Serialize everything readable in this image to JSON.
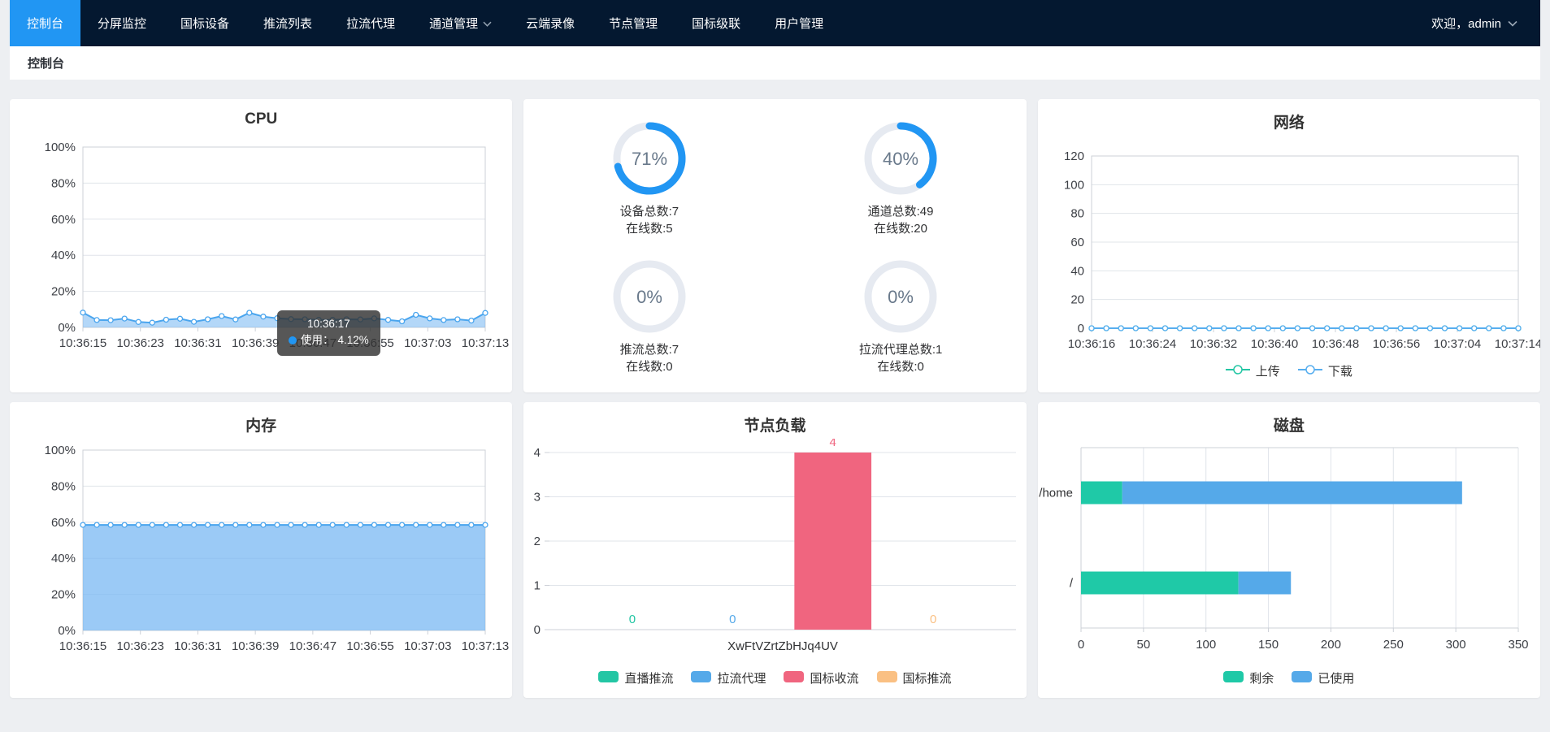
{
  "nav": {
    "items": [
      {
        "label": "控制台",
        "active": true,
        "dropdown": false
      },
      {
        "label": "分屏监控",
        "active": false,
        "dropdown": false
      },
      {
        "label": "国标设备",
        "active": false,
        "dropdown": false
      },
      {
        "label": "推流列表",
        "active": false,
        "dropdown": false
      },
      {
        "label": "拉流代理",
        "active": false,
        "dropdown": false
      },
      {
        "label": "通道管理",
        "active": false,
        "dropdown": true
      },
      {
        "label": "云端录像",
        "active": false,
        "dropdown": false
      },
      {
        "label": "节点管理",
        "active": false,
        "dropdown": false
      },
      {
        "label": "国标级联",
        "active": false,
        "dropdown": false
      },
      {
        "label": "用户管理",
        "active": false,
        "dropdown": false
      }
    ],
    "welcome": "欢迎，admin"
  },
  "breadcrumb": "控制台",
  "colors": {
    "navbar_bg": "#041830",
    "active_tab": "#2196f3",
    "accent_blue": "#2196f3",
    "line_blue": "#4aa5ee",
    "teal": "#23c6a4",
    "bar_blue": "#55a9e9",
    "pink": "#f0657f",
    "orange": "#fac083",
    "gauge_track": "#e6eaf1"
  },
  "chart_data": [
    {
      "id": "cpu",
      "type": "area",
      "title": "CPU",
      "ylim": [
        0,
        100
      ],
      "yticks": [
        0,
        20,
        40,
        60,
        80,
        100
      ],
      "y_suffix": "%",
      "x": [
        "10:36:15",
        "10:36:17",
        "10:36:19",
        "10:36:21",
        "10:36:23",
        "10:36:25",
        "10:36:27",
        "10:36:29",
        "10:36:31",
        "10:36:33",
        "10:36:35",
        "10:36:37",
        "10:36:39",
        "10:36:41",
        "10:36:43",
        "10:36:45",
        "10:36:47",
        "10:36:49",
        "10:36:51",
        "10:36:53",
        "10:36:55",
        "10:36:57",
        "10:36:59",
        "10:37:01",
        "10:37:03",
        "10:37:05",
        "10:37:07",
        "10:37:09",
        "10:37:11",
        "10:37:13"
      ],
      "x_tick_labels": [
        "10:36:15",
        "10:36:23",
        "10:36:31",
        "10:36:39",
        "10:36:47",
        "10:36:55",
        "10:37:03",
        "10:37:13"
      ],
      "series": [
        {
          "name": "使用",
          "color": "#4aa5ee",
          "fill": "rgba(116,182,242,0.55)",
          "values": [
            8.2,
            4.12,
            4.0,
            4.9,
            3.0,
            2.6,
            4.3,
            4.8,
            3.1,
            4.5,
            6.3,
            4.4,
            8.1,
            6.0,
            5.1,
            4.6,
            4.5,
            4.2,
            4.2,
            4.5,
            4.4,
            5.0,
            4.2,
            3.4,
            7.0,
            5.0,
            4.1,
            4.5,
            3.8,
            8.0
          ]
        }
      ],
      "tooltip": {
        "time": "10:36:17",
        "label": "使用：",
        "value": "4.12%"
      }
    },
    {
      "id": "overview-gauges",
      "type": "gauge",
      "color": "#2196f3",
      "track": "#e6eaf1",
      "items": [
        {
          "percent": 71,
          "text": "71%",
          "label_lines": [
            "设备总数:7",
            "在线数:5"
          ]
        },
        {
          "percent": 40,
          "text": "40%",
          "label_lines": [
            "通道总数:49",
            "在线数:20"
          ]
        },
        {
          "percent": 0,
          "text": "0%",
          "label_lines": [
            "推流总数:7",
            "在线数:0"
          ]
        },
        {
          "percent": 0,
          "text": "0%",
          "label_lines": [
            "拉流代理总数:1",
            "在线数:0"
          ]
        }
      ]
    },
    {
      "id": "network",
      "type": "line",
      "title": "网络",
      "ylim": [
        0,
        120
      ],
      "yticks": [
        0,
        20,
        40,
        60,
        80,
        100,
        120
      ],
      "y_suffix": "",
      "x": [
        "10:36:16",
        "10:36:18",
        "10:36:20",
        "10:36:22",
        "10:36:24",
        "10:36:26",
        "10:36:28",
        "10:36:30",
        "10:36:32",
        "10:36:34",
        "10:36:36",
        "10:36:38",
        "10:36:40",
        "10:36:42",
        "10:36:44",
        "10:36:46",
        "10:36:48",
        "10:36:50",
        "10:36:52",
        "10:36:54",
        "10:36:56",
        "10:36:58",
        "10:37:00",
        "10:37:02",
        "10:37:04",
        "10:37:06",
        "10:37:08",
        "10:37:10",
        "10:37:12",
        "10:37:14"
      ],
      "x_tick_labels": [
        "10:36:16",
        "10:36:24",
        "10:36:32",
        "10:36:40",
        "10:36:48",
        "10:36:56",
        "10:37:04",
        "10:37:14"
      ],
      "series": [
        {
          "name": "上传",
          "color": "#23c6a4",
          "values": [
            0,
            0,
            0,
            0,
            0,
            0,
            0,
            0,
            0,
            0,
            0,
            0,
            0,
            0,
            0,
            0,
            0,
            0,
            0,
            0,
            0,
            0,
            0,
            0,
            0,
            0,
            0,
            0,
            0,
            0
          ]
        },
        {
          "name": "下载",
          "color": "#57aeef",
          "values": [
            0,
            0,
            0,
            0,
            0,
            0,
            0,
            0,
            0,
            0,
            0,
            0,
            0,
            0,
            0,
            0,
            0,
            0,
            0,
            0,
            0,
            0,
            0,
            0,
            0,
            0,
            0,
            0,
            0,
            0
          ]
        }
      ],
      "legend": {
        "style": "line-marker",
        "position": "bottom"
      }
    },
    {
      "id": "memory",
      "type": "area",
      "title": "内存",
      "ylim": [
        0,
        100
      ],
      "yticks": [
        0,
        20,
        40,
        60,
        80,
        100
      ],
      "y_suffix": "%",
      "x": [
        "10:36:15",
        "10:36:17",
        "10:36:19",
        "10:36:21",
        "10:36:23",
        "10:36:25",
        "10:36:27",
        "10:36:29",
        "10:36:31",
        "10:36:33",
        "10:36:35",
        "10:36:37",
        "10:36:39",
        "10:36:41",
        "10:36:43",
        "10:36:45",
        "10:36:47",
        "10:36:49",
        "10:36:51",
        "10:36:53",
        "10:36:55",
        "10:36:57",
        "10:36:59",
        "10:37:01",
        "10:37:03",
        "10:37:05",
        "10:37:07",
        "10:37:09",
        "10:37:11",
        "10:37:13"
      ],
      "x_tick_labels": [
        "10:36:15",
        "10:36:23",
        "10:36:31",
        "10:36:39",
        "10:36:47",
        "10:36:55",
        "10:37:03",
        "10:37:13"
      ],
      "series": [
        {
          "name": "使用",
          "color": "#4aa5ee",
          "fill": "rgba(116,182,242,0.72)",
          "values": [
            58.5,
            58.5,
            58.5,
            58.5,
            58.5,
            58.5,
            58.5,
            58.5,
            58.5,
            58.5,
            58.5,
            58.5,
            58.5,
            58.5,
            58.5,
            58.5,
            58.5,
            58.5,
            58.5,
            58.5,
            58.5,
            58.5,
            58.5,
            58.5,
            58.5,
            58.5,
            58.5,
            58.5,
            58.5,
            58.5
          ]
        }
      ]
    },
    {
      "id": "load",
      "type": "bar",
      "title": "节点负载",
      "ylim": [
        0,
        4
      ],
      "yticks": [
        0,
        1,
        2,
        3,
        4
      ],
      "categories": [
        "XwFtVZrtZbHJq4UV"
      ],
      "series": [
        {
          "name": "直播推流",
          "color": "#23c6a4",
          "values": [
            0
          ]
        },
        {
          "name": "拉流代理",
          "color": "#55a9e9",
          "values": [
            0
          ]
        },
        {
          "name": "国标收流",
          "color": "#f0657f",
          "values": [
            4
          ]
        },
        {
          "name": "国标推流",
          "color": "#fac083",
          "values": [
            0
          ]
        }
      ],
      "legend": {
        "style": "swatch",
        "position": "bottom"
      }
    },
    {
      "id": "disk",
      "type": "hbar",
      "title": "磁盘",
      "xlim": [
        0,
        350
      ],
      "xticks": [
        0,
        50,
        100,
        150,
        200,
        250,
        300,
        350
      ],
      "categories": [
        "/home",
        "/"
      ],
      "series": [
        {
          "name": "剩余",
          "color": "#1fc9a7",
          "values": [
            33,
            126
          ]
        },
        {
          "name": "已使用",
          "color": "#55a9e9",
          "values": [
            272,
            42
          ]
        }
      ],
      "legend": {
        "style": "swatch",
        "position": "bottom"
      }
    }
  ]
}
